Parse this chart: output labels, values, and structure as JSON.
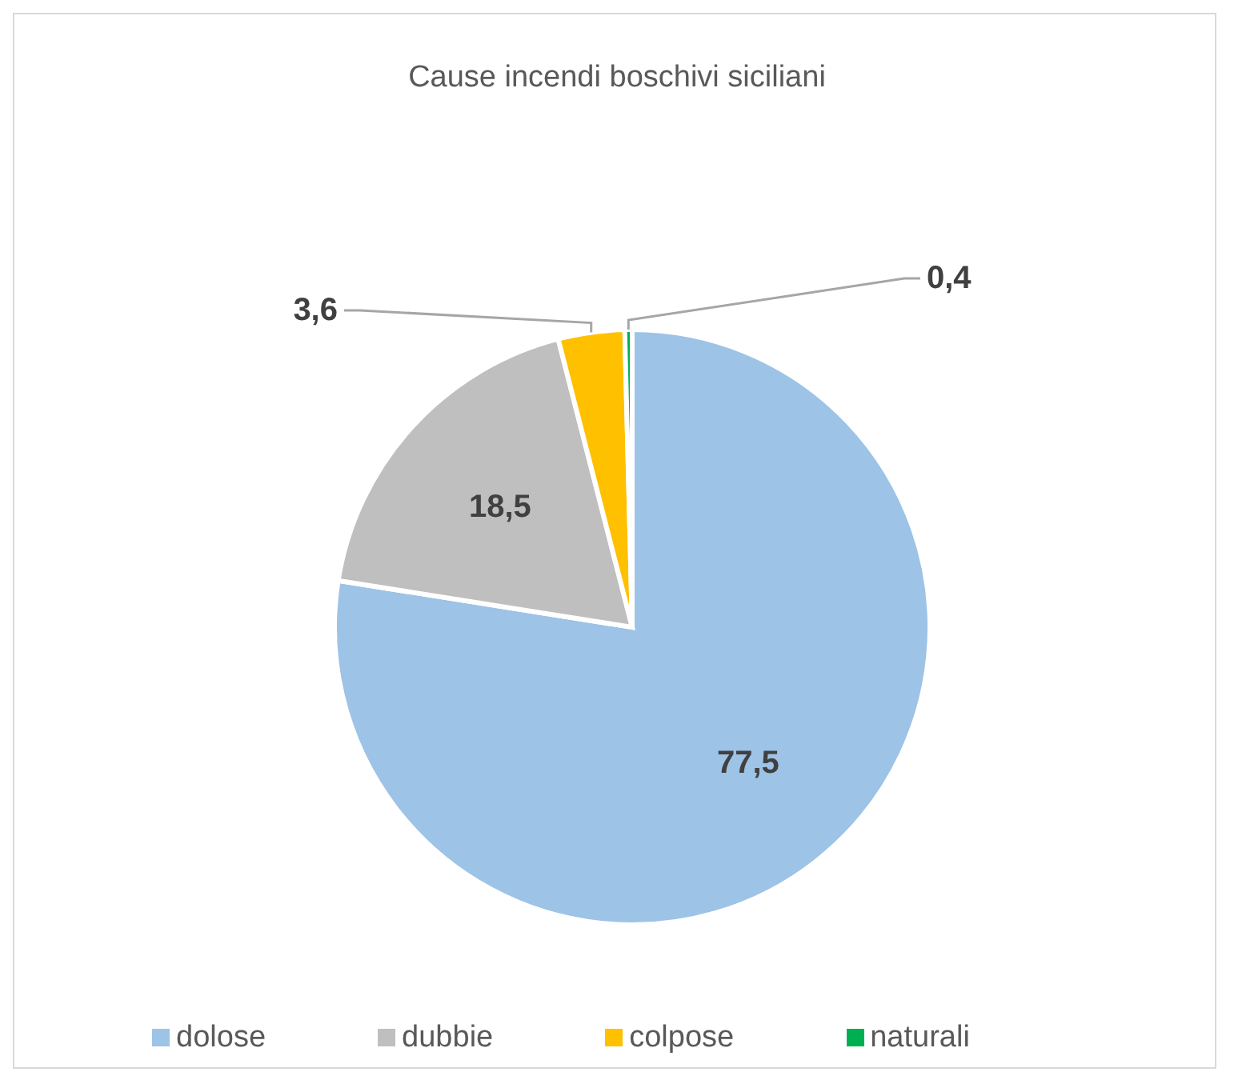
{
  "chart_data": {
    "type": "pie",
    "title": "Cause incendi boschivi siciliani",
    "categories": [
      "dolose",
      "dubbie",
      "colpose",
      "naturali"
    ],
    "values": [
      77.5,
      18.5,
      3.6,
      0.4
    ],
    "colors": [
      "#9dc3e6",
      "#bfbfbf",
      "#ffc000",
      "#00b050"
    ],
    "value_labels": [
      "77,5",
      "18,5",
      "3,6",
      "0,4"
    ],
    "legend": "bottom"
  }
}
